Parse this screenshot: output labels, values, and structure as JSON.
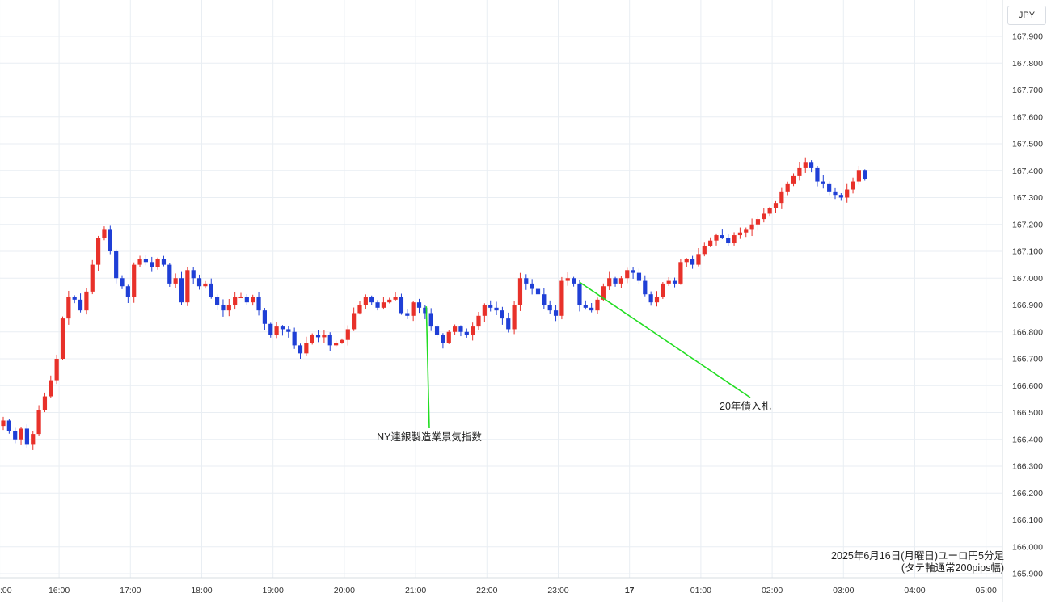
{
  "currency_label": "JPY",
  "caption": {
    "line1": "2025年6月16日(月曜日)ユーロ円5分足",
    "line2": "(タテ軸通常200pips幅)"
  },
  "colors": {
    "up": "#e8312a",
    "down": "#1f3fd6",
    "annotation_line": "#22dd22",
    "grid": "#e9eef3"
  },
  "chart_data": {
    "type": "candlestick",
    "instrument": "ユーロ円",
    "timeframe": "5分足",
    "ylim": [
      165.9,
      167.97
    ],
    "y_ticks": [
      "167.900",
      "167.800",
      "167.700",
      "167.600",
      "167.500",
      "167.400",
      "167.300",
      "167.200",
      "167.100",
      "167.000",
      "166.900",
      "166.800",
      "166.700",
      "166.600",
      "166.500",
      "166.400",
      "166.300",
      "166.200",
      "166.100",
      "166.000",
      "165.900"
    ],
    "y_tick_values": [
      167.9,
      167.8,
      167.7,
      167.6,
      167.5,
      167.4,
      167.3,
      167.2,
      167.1,
      167.0,
      166.9,
      166.8,
      166.7,
      166.6,
      166.5,
      166.4,
      166.3,
      166.2,
      166.1,
      166.0,
      165.9
    ],
    "x_ticks": [
      {
        "label": ":00",
        "bar": -0.6
      },
      {
        "label": "16:00",
        "bar": 9.4
      },
      {
        "label": "17:00",
        "bar": 21.4
      },
      {
        "label": "18:00",
        "bar": 33.4
      },
      {
        "label": "19:00",
        "bar": 45.4
      },
      {
        "label": "20:00",
        "bar": 57.4
      },
      {
        "label": "21:00",
        "bar": 69.4
      },
      {
        "label": "22:00",
        "bar": 81.4
      },
      {
        "label": "23:00",
        "bar": 93.4
      },
      {
        "label": "17",
        "bar": 105.4
      },
      {
        "label": "01:00",
        "bar": 117.4
      },
      {
        "label": "02:00",
        "bar": 129.4
      },
      {
        "label": "03:00",
        "bar": 141.4
      },
      {
        "label": "04:00",
        "bar": 153.4
      },
      {
        "label": "05:00",
        "bar": 165.4
      }
    ],
    "closes": [
      166.47,
      166.43,
      166.4,
      166.44,
      166.38,
      166.42,
      166.51,
      166.56,
      166.62,
      166.7,
      166.85,
      166.93,
      166.92,
      166.88,
      166.95,
      167.05,
      167.15,
      167.18,
      167.1,
      167.0,
      166.97,
      166.93,
      167.05,
      167.07,
      167.06,
      167.04,
      167.07,
      167.05,
      166.98,
      167.0,
      166.91,
      167.03,
      167.0,
      166.97,
      166.98,
      166.93,
      166.9,
      166.88,
      166.9,
      166.93,
      166.93,
      166.91,
      166.93,
      166.88,
      166.83,
      166.79,
      166.82,
      166.81,
      166.8,
      166.75,
      166.72,
      166.76,
      166.79,
      166.78,
      166.79,
      166.75,
      166.76,
      166.77,
      166.81,
      166.87,
      166.9,
      166.93,
      166.91,
      166.89,
      166.91,
      166.92,
      166.93,
      166.87,
      166.86,
      166.91,
      166.89,
      166.87,
      166.82,
      166.79,
      166.76,
      166.8,
      166.82,
      166.8,
      166.79,
      166.82,
      166.86,
      166.9,
      166.89,
      166.88,
      166.85,
      166.81,
      166.9,
      167.0,
      166.98,
      166.96,
      166.94,
      166.9,
      166.88,
      166.86,
      166.99,
      167.0,
      166.98,
      166.9,
      166.89,
      166.88,
      166.92,
      166.97,
      167.0,
      166.98,
      167.0,
      167.03,
      167.02,
      166.99,
      166.94,
      166.91,
      166.93,
      166.98,
      166.99,
      166.98,
      167.06,
      167.07,
      167.05,
      167.09,
      167.12,
      167.14,
      167.16,
      167.15,
      167.13,
      167.16,
      167.17,
      167.18,
      167.2,
      167.22,
      167.24,
      167.26,
      167.28,
      167.32,
      167.35,
      167.38,
      167.41,
      167.43,
      167.41,
      167.36,
      167.35,
      167.32,
      167.31,
      167.3,
      167.33,
      167.36,
      167.4,
      167.37
    ]
  },
  "annotations": [
    {
      "label": "NY連銀製造業景気指数",
      "bar": 71.2,
      "price": 166.895
    },
    {
      "label": "20年債入札",
      "bar": 97.0,
      "price": 166.985
    }
  ]
}
